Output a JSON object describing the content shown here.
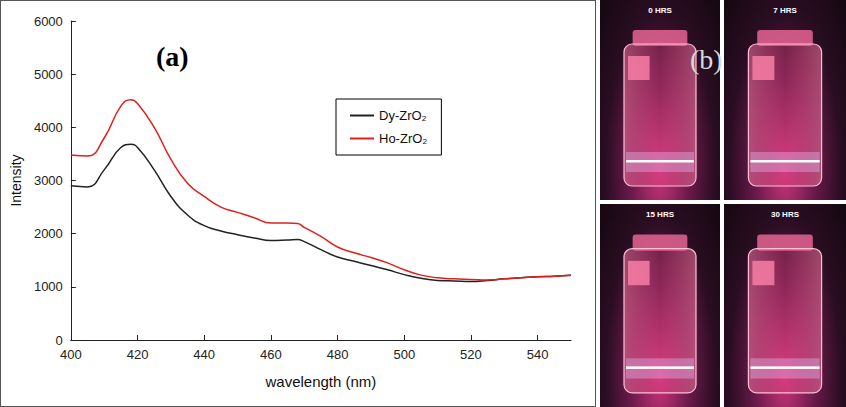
{
  "chart_data": {
    "type": "line",
    "title": "(a)",
    "x_label": "wavelength (nm)",
    "y_label": "Intensity",
    "x": [
      400,
      405,
      410,
      415,
      418,
      420,
      425,
      430,
      435,
      440,
      445,
      450,
      455,
      460,
      465,
      468,
      470,
      475,
      480,
      485,
      490,
      495,
      500,
      505,
      510,
      515,
      520,
      525,
      530,
      535,
      540,
      545,
      550
    ],
    "series": [
      {
        "name": "Dy-ZrO₂",
        "color": "#222222",
        "values": [
          2900,
          2880,
          3200,
          3620,
          3680,
          3620,
          3200,
          2700,
          2350,
          2150,
          2050,
          1980,
          1920,
          1870,
          1880,
          1890,
          1850,
          1700,
          1560,
          1480,
          1400,
          1320,
          1230,
          1160,
          1120,
          1110,
          1100,
          1120,
          1150,
          1170,
          1190,
          1200,
          1220
        ]
      },
      {
        "name": "Ho-ZrO₂",
        "color": "#e0201b",
        "values": [
          3480,
          3460,
          3800,
          4400,
          4520,
          4450,
          4000,
          3400,
          2950,
          2700,
          2500,
          2400,
          2300,
          2200,
          2200,
          2190,
          2120,
          1950,
          1750,
          1640,
          1550,
          1450,
          1320,
          1220,
          1170,
          1150,
          1140,
          1130,
          1150,
          1170,
          1190,
          1200,
          1220
        ]
      }
    ],
    "xlim": [
      400,
      550
    ],
    "xticks": [
      400,
      420,
      440,
      460,
      480,
      500,
      520,
      540
    ],
    "ylim": [
      0,
      6000
    ],
    "yticks": [
      0,
      1000,
      2000,
      3000,
      4000,
      5000,
      6000
    ],
    "legend": "upper right",
    "grid": false
  },
  "panel_b": {
    "label": "(b)",
    "captions": [
      "0 HRS",
      "7 HRS",
      "15 HRS",
      "30 HRS"
    ]
  }
}
